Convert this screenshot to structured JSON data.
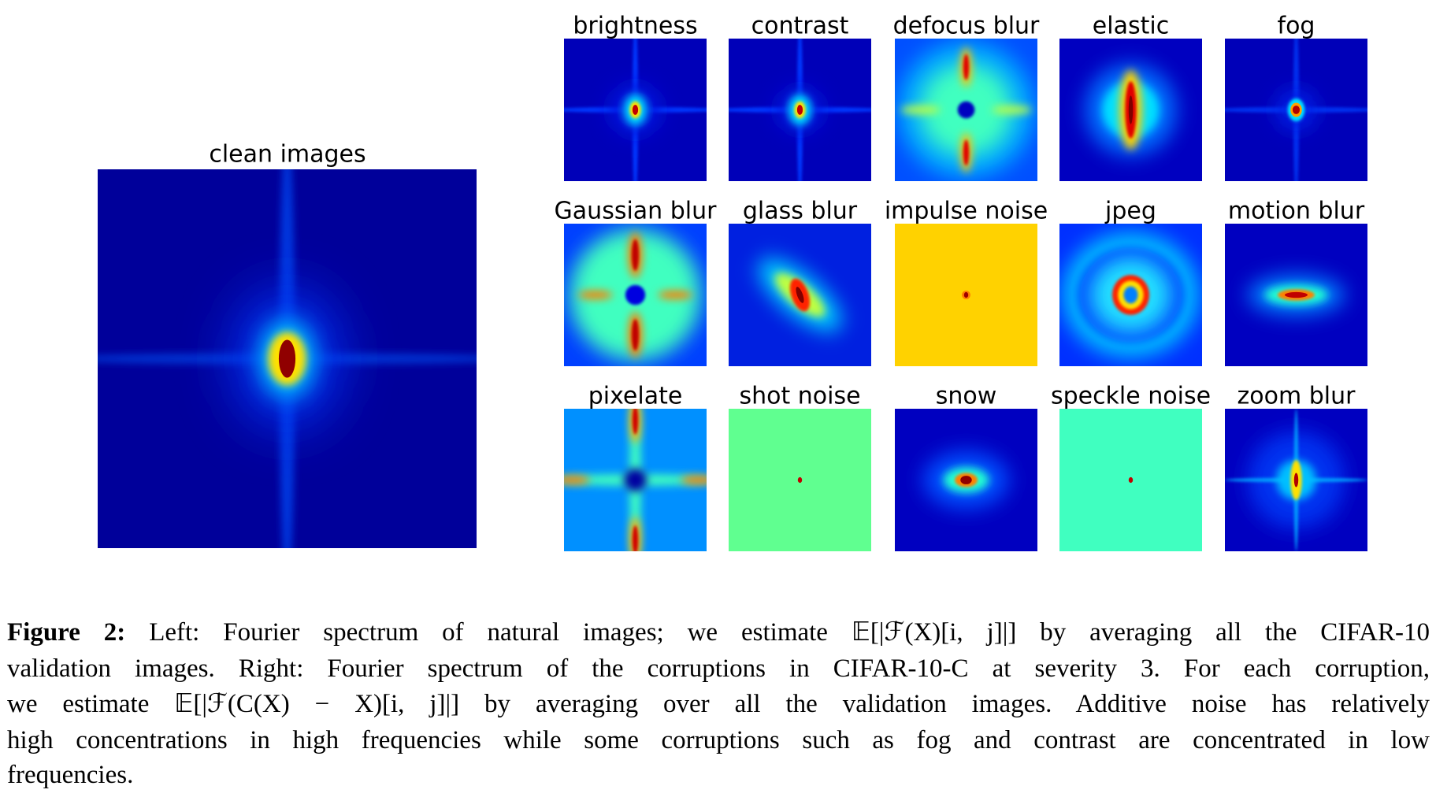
{
  "figure": {
    "main": {
      "title": "clean images"
    },
    "panels": [
      {
        "title": "brightness"
      },
      {
        "title": "contrast"
      },
      {
        "title": "defocus blur"
      },
      {
        "title": "elastic"
      },
      {
        "title": "fog"
      },
      {
        "title": "Gaussian blur"
      },
      {
        "title": "glass blur"
      },
      {
        "title": "impulse noise"
      },
      {
        "title": "jpeg"
      },
      {
        "title": "motion blur"
      },
      {
        "title": "pixelate"
      },
      {
        "title": "shot noise"
      },
      {
        "title": "snow"
      },
      {
        "title": "speckle noise"
      },
      {
        "title": "zoom blur"
      }
    ]
  },
  "caption": {
    "label": "Figure 2:",
    "lines": [
      "Left: Fourier spectrum of natural images; we estimate 𝔼[|ℱ(X)[i, j]|] by averaging all the CIFAR-10",
      "validation images. Right: Fourier spectrum of the corruptions in CIFAR-10-C at severity 3. For each corruption,",
      "we estimate 𝔼[|ℱ(C(X) − X)[i, j]|] by averaging over all the validation images. Additive noise has relatively",
      "high concentrations in high frequencies while some corruptions such as fog and contrast are concentrated in low",
      "frequencies."
    ]
  }
}
